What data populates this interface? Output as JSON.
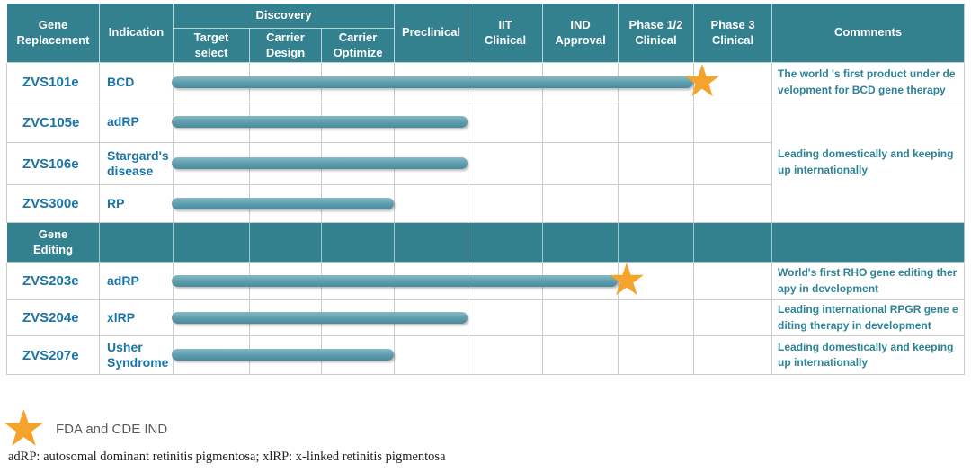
{
  "labels": {
    "gene_replacement": "Gene\nReplacement",
    "indication": "Indication",
    "discovery": "Discovery",
    "target_select": "Target\nselect",
    "carrier_design": "Carrier\nDesign",
    "carrier_optimize": "Carrier\nOptimize",
    "preclinical": "Preclinical",
    "iit_clinical": "IIT\nClinical",
    "ind_approval": "IND\nApproval",
    "phase12_clinical": "Phase 1/2\nClinical",
    "phase3_clinical": "Phase 3\nClinical",
    "comments": "Commnents",
    "gene_editing": "Gene\nEditing"
  },
  "comments": {
    "shared_gene_replacement": "Leading domestically and keeping up internationally"
  },
  "legend": {
    "label": "FDA and CDE IND"
  },
  "footnote": "adRP: autosomal dominant retinitis pigmentosa; xlRP: x-linked retinitis pigmentosa",
  "colors": {
    "header_teal": "#33808F",
    "bar_teal": "#5C9CAD",
    "star_orange": "#F5A42B",
    "product_text": "#1A75A6",
    "comment_text": "#2E8397",
    "grid": "#CCCCCC"
  },
  "chart_data": {
    "type": "bar",
    "stages": [
      "Target select",
      "Carrier Design",
      "Carrier Optimize",
      "Preclinical",
      "IIT Clinical",
      "IND Approval",
      "Phase 1/2 Clinical",
      "Phase 3 Clinical"
    ],
    "sections": [
      "Gene Replacement",
      "Gene Editing"
    ],
    "legend_note": "star = FDA and CDE IND",
    "rows": [
      {
        "section": "Gene Replacement",
        "product": "ZVS101e",
        "indication": "BCD",
        "progress_through": "Phase 1/2 Clinical",
        "milestone_star": true,
        "comment": "The world 's first product under development for BCD gene therapy"
      },
      {
        "section": "Gene Replacement",
        "product": "ZVC105e",
        "indication": "adRP",
        "progress_through": "Preclinical",
        "milestone_star": false,
        "comment": "Leading domestically and keeping up internationally"
      },
      {
        "section": "Gene Replacement",
        "product": "ZVS106e",
        "indication": "Stargard's\ndisease",
        "progress_through": "Preclinical",
        "milestone_star": false,
        "comment": "Leading domestically and keeping up internationally"
      },
      {
        "section": "Gene Replacement",
        "product": "ZVS300e",
        "indication": "RP",
        "progress_through": "Carrier Optimize",
        "milestone_star": false,
        "comment": "Leading domestically and keeping up internationally"
      },
      {
        "section": "Gene Editing",
        "product": "ZVS203e",
        "indication": "adRP",
        "progress_through": "IND Approval",
        "milestone_star": true,
        "comment": "World's first RHO gene editing therapy in development"
      },
      {
        "section": "Gene Editing",
        "product": "ZVS204e",
        "indication": "xlRP",
        "progress_through": "Preclinical",
        "milestone_star": false,
        "comment": "Leading international RPGR gene editing therapy in development"
      },
      {
        "section": "Gene Editing",
        "product": "ZVS207e",
        "indication": "Usher\nSyndrome",
        "progress_through": "Carrier Optimize",
        "milestone_star": false,
        "comment": "Leading domestically and keeping up internationally"
      }
    ]
  }
}
